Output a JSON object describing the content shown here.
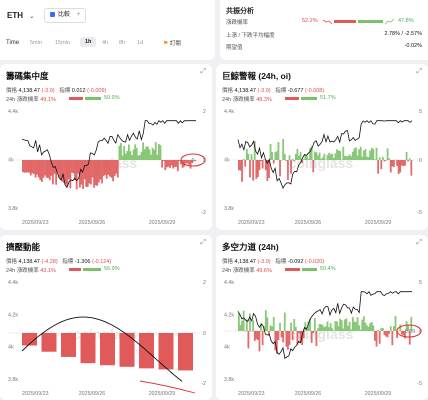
{
  "header": {
    "symbol": "ETH",
    "compare_label": "比較",
    "compare_plus": "+",
    "time_label": "Time",
    "timeframes": [
      "5min",
      "15min",
      "1h",
      "4h",
      "8h",
      "1d"
    ],
    "active_timeframe": "1h",
    "subscribe_label": "訂閱"
  },
  "consensus": {
    "title": "共振分析",
    "rows": [
      {
        "label": "漲跌機率",
        "red_value": "52.2%",
        "green_value": "47.8%"
      },
      {
        "label": "上漲 / 下跌平均幅度",
        "value": "2.78% / -2.57%"
      },
      {
        "label": "期望值",
        "value": "-0.02%"
      }
    ]
  },
  "panels": [
    {
      "title": "籌碼集中度",
      "price_label": "價格",
      "price": "4,138.47",
      "price_change": "(-3.9)",
      "index_label": "指標",
      "index_value": "0.012",
      "index_change": "(-0.009)",
      "prob_label": "24h 漲跌機率",
      "prob_red": "49.1%",
      "prob_green": "50.9%",
      "y_right": [
        "2",
        "0",
        "-2"
      ],
      "y_left": [
        "4.4k",
        "4k",
        "3.8k"
      ],
      "x_labels": [
        "2025/09/23",
        "2025/09/26",
        "2025/09/29"
      ],
      "marker": "0",
      "watermark": "coinglass"
    },
    {
      "title": "巨鯨警報 (24h, oi)",
      "price_label": "價格",
      "price": "4,138.47",
      "price_change": "(-3.9)",
      "index_label": "指標",
      "index_value": "-0.677",
      "index_change": "(-0.008)",
      "prob_label": "24h 漲跌機率",
      "prob_red": "48.3%",
      "prob_green": "51.7%",
      "y_right": [
        "5",
        "0",
        "-5"
      ],
      "y_left": [
        "4.4k",
        "4k",
        "3.8k"
      ],
      "x_labels": [
        "2025/09/23",
        "2025/09/26",
        "2025/09/29"
      ],
      "watermark": "coinglass"
    },
    {
      "title": "擠壓動能",
      "price_label": "價格",
      "price": "4,138.47",
      "price_change": "(-4.28)",
      "index_label": "指標",
      "index_value": "-1.306",
      "index_change": "(-0.124)",
      "prob_label": "24h 漲跌機率",
      "prob_red": "43.1%",
      "prob_green": "56.9%",
      "y_right": [
        "2",
        "0",
        "-2"
      ],
      "y_left": [
        "4.4k",
        "4.2k",
        "4k",
        "3.8k"
      ],
      "x_labels": [
        "2025/09/23",
        "2025/09/26",
        "2025/09/29"
      ],
      "watermark": "coinglass"
    },
    {
      "title": "多空力道 (24h)",
      "price_label": "價格",
      "price": "4,138.47",
      "price_change": "(-3.9)",
      "index_label": "指標",
      "index_value": "-0.092",
      "index_change": "(-0.020)",
      "prob_label": "24h 漲跌機率",
      "prob_red": "49.6%",
      "prob_green": "50.4%",
      "y_right": [
        "5",
        "0",
        "-5"
      ],
      "y_left": [
        "4.4k",
        "4.2k",
        "4k",
        "3.8k"
      ],
      "x_labels": [
        "2025/09/23",
        "2025/09/26",
        "2025/09/29"
      ],
      "marker": "-0.09",
      "watermark": "coinglass"
    }
  ],
  "colors": {
    "up": "#7cc26a",
    "down": "#e05a5a",
    "line": "#111111",
    "accent": "#e03030"
  },
  "icons": {
    "chevron": "chevron-down-icon",
    "expand": "expand-icon",
    "flag": "flag-icon",
    "trend_down": "trend-down-icon",
    "trend_up": "trend-up-icon"
  }
}
